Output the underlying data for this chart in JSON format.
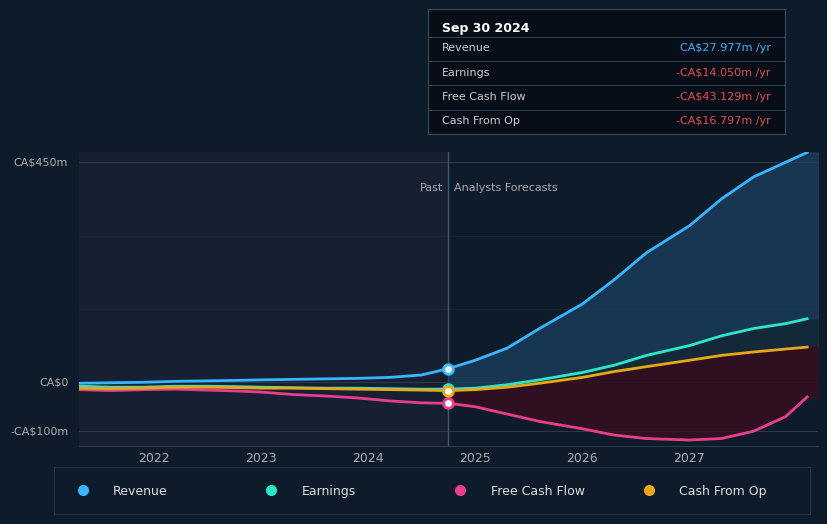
{
  "bg_color": "#0d1b2a",
  "past_bg_color": "#162032",
  "grid_color": "#2a3a4a",
  "tooltip": {
    "date": "Sep 30 2024",
    "bg_color": "#080e18",
    "border_color": "#3a4a5a",
    "rows": [
      {
        "label": "Revenue",
        "value": "CA$27.977m /yr",
        "value_color": "#38b6ff"
      },
      {
        "label": "Earnings",
        "value": "-CA$14.050m /yr",
        "value_color": "#e05050"
      },
      {
        "label": "Free Cash Flow",
        "value": "-CA$43.129m /yr",
        "value_color": "#e05050"
      },
      {
        "label": "Cash From Op",
        "value": "-CA$16.797m /yr",
        "value_color": "#e05050"
      }
    ]
  },
  "divider_x": 2024.75,
  "past_label": "Past",
  "forecast_label": "Analysts Forecasts",
  "ylim": [
    -130,
    470
  ],
  "ytick_values": [
    -100,
    0,
    450
  ],
  "ytick_labels": [
    "-CA$100m",
    "CA$0",
    "CA$450m"
  ],
  "xlim": [
    2021.3,
    2028.2
  ],
  "xticks": [
    2022,
    2023,
    2024,
    2025,
    2026,
    2027
  ],
  "revenue": {
    "color": "#38b6ff",
    "x": [
      2021.3,
      2021.6,
      2021.9,
      2022.2,
      2022.5,
      2022.8,
      2023.0,
      2023.3,
      2023.6,
      2023.9,
      2024.2,
      2024.5,
      2024.75,
      2025.0,
      2025.3,
      2025.6,
      2026.0,
      2026.3,
      2026.6,
      2027.0,
      2027.3,
      2027.6,
      2027.9,
      2028.1
    ],
    "y": [
      -2,
      -1,
      0,
      2,
      3,
      4,
      5,
      6,
      7,
      8,
      10,
      15,
      28,
      45,
      70,
      110,
      160,
      210,
      265,
      320,
      375,
      420,
      450,
      470
    ],
    "marker_x": 2024.75,
    "marker_y": 28
  },
  "earnings": {
    "color": "#2de6c8",
    "x": [
      2021.3,
      2021.6,
      2021.9,
      2022.2,
      2022.5,
      2022.8,
      2023.0,
      2023.3,
      2023.6,
      2023.9,
      2024.2,
      2024.5,
      2024.75,
      2025.0,
      2025.3,
      2025.6,
      2026.0,
      2026.3,
      2026.6,
      2027.0,
      2027.3,
      2027.6,
      2027.9,
      2028.1
    ],
    "y": [
      -8,
      -10,
      -10,
      -8,
      -8,
      -9,
      -10,
      -11,
      -12,
      -12,
      -13,
      -14,
      -14,
      -12,
      -5,
      5,
      20,
      35,
      55,
      75,
      95,
      110,
      120,
      130
    ],
    "marker_x": 2024.75,
    "marker_y": -14
  },
  "free_cash_flow": {
    "color": "#e83e8c",
    "x": [
      2021.3,
      2021.6,
      2021.9,
      2022.2,
      2022.5,
      2022.8,
      2023.0,
      2023.3,
      2023.6,
      2023.9,
      2024.2,
      2024.5,
      2024.75,
      2025.0,
      2025.3,
      2025.6,
      2026.0,
      2026.3,
      2026.6,
      2027.0,
      2027.3,
      2027.6,
      2027.9,
      2028.1
    ],
    "y": [
      -15,
      -17,
      -15,
      -14,
      -16,
      -18,
      -20,
      -25,
      -28,
      -32,
      -38,
      -42,
      -43,
      -50,
      -65,
      -80,
      -95,
      -108,
      -115,
      -118,
      -115,
      -100,
      -70,
      -30
    ],
    "marker_x": 2024.75,
    "marker_y": -43
  },
  "cash_from_op": {
    "color": "#e6a817",
    "x": [
      2021.3,
      2021.6,
      2021.9,
      2022.2,
      2022.5,
      2022.8,
      2023.0,
      2023.3,
      2023.6,
      2023.9,
      2024.2,
      2024.5,
      2024.75,
      2025.0,
      2025.3,
      2025.6,
      2026.0,
      2026.3,
      2026.6,
      2027.0,
      2027.3,
      2027.6,
      2027.9,
      2028.1
    ],
    "y": [
      -12,
      -13,
      -12,
      -10,
      -10,
      -11,
      -12,
      -12,
      -13,
      -14,
      -15,
      -16,
      -17,
      -15,
      -10,
      -2,
      10,
      22,
      32,
      45,
      55,
      62,
      68,
      72
    ],
    "marker_x": 2024.75,
    "marker_y": -17
  },
  "legend_items": [
    {
      "label": "Revenue",
      "color": "#38b6ff"
    },
    {
      "label": "Earnings",
      "color": "#2de6c8"
    },
    {
      "label": "Free Cash Flow",
      "color": "#e83e8c"
    },
    {
      "label": "Cash From Op",
      "color": "#e6a817"
    }
  ]
}
